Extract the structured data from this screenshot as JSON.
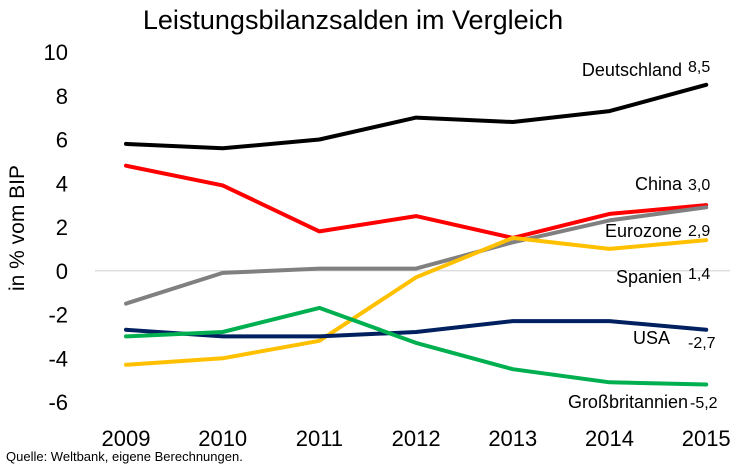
{
  "chart_data": {
    "type": "line",
    "title": "Leistungsbilanzsalden im Vergleich",
    "xlabel": "",
    "ylabel": "in % vom BIP",
    "x": [
      "2009",
      "2010",
      "2011",
      "2012",
      "2013",
      "2014",
      "2015"
    ],
    "yticks": [
      "10",
      "8",
      "6",
      "4",
      "2",
      "0",
      "-2",
      "-4",
      "-6"
    ],
    "ylim": [
      -6,
      10
    ],
    "grid": false,
    "source": "Quelle: Weltbank, eigene Berechnungen.",
    "series": [
      {
        "name": "Deutschland",
        "color": "#000000",
        "last_label": "8,5",
        "values": [
          5.8,
          5.6,
          6.0,
          7.0,
          6.8,
          7.3,
          8.5
        ]
      },
      {
        "name": "China",
        "color": "#ff0000",
        "last_label": "3,0",
        "values": [
          4.8,
          3.9,
          1.8,
          2.5,
          1.5,
          2.6,
          3.0
        ]
      },
      {
        "name": "Eurozone",
        "color": "#808080",
        "last_label": "2,9",
        "values": [
          -1.5,
          -0.1,
          0.1,
          0.1,
          1.3,
          2.3,
          2.9
        ]
      },
      {
        "name": "Spanien",
        "color": "#ffc000",
        "last_label": "1,4",
        "values": [
          -4.3,
          -4.0,
          -3.2,
          -0.3,
          1.5,
          1.0,
          1.4
        ]
      },
      {
        "name": "USA",
        "color": "#002060",
        "last_label": "-2,7",
        "values": [
          -2.7,
          -3.0,
          -3.0,
          -2.8,
          -2.3,
          -2.3,
          -2.7
        ]
      },
      {
        "name": "Großbritannien",
        "color": "#00b050",
        "last_label": "-5,2",
        "values": [
          -3.0,
          -2.8,
          -1.7,
          -3.3,
          -4.5,
          -5.1,
          -5.2
        ]
      }
    ]
  }
}
